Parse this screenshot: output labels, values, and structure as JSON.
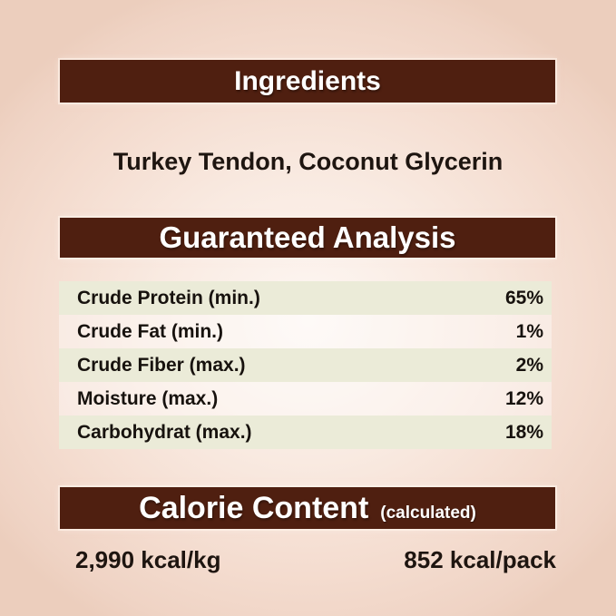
{
  "colors": {
    "bar_brown": "#4f1f10",
    "row_stripe_green": "#ebebd8",
    "background_pink": "#f0d4c6",
    "header_text": "#ffffff",
    "body_text": "#1e1510"
  },
  "ingredients": {
    "header": "Ingredients",
    "text": "Turkey Tendon, Coconut Glycerin"
  },
  "guaranteed_analysis": {
    "header": "Guaranteed Analysis",
    "rows": [
      {
        "label": "Crude Protein (min.)",
        "value": "65%"
      },
      {
        "label": "Crude Fat (min.)",
        "value": "1%"
      },
      {
        "label": "Crude Fiber (max.)",
        "value": "2%"
      },
      {
        "label": "Moisture (max.)",
        "value": "12%"
      },
      {
        "label": "Carbohydrat (max.)",
        "value": "18%"
      }
    ]
  },
  "calorie_content": {
    "header": "Calorie Content",
    "header_note": "(calculated)",
    "per_kg": "2,990 kcal/kg",
    "per_pack": "852 kcal/pack"
  }
}
